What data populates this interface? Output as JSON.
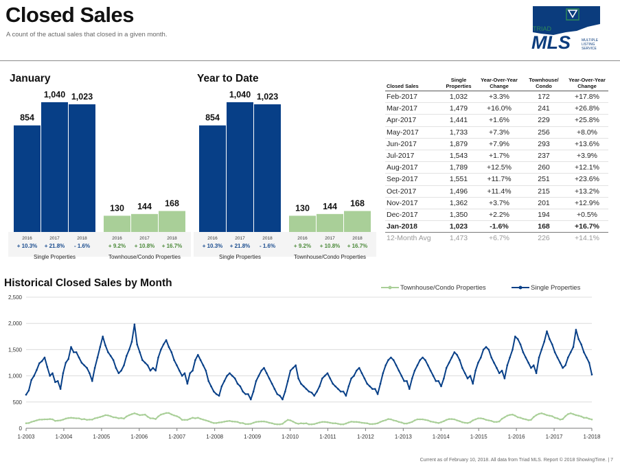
{
  "header": {
    "title": "Closed Sales",
    "subtitle": "A count of the actual sales that closed in a given month."
  },
  "logo": {
    "line1": "TRIAD",
    "line2": "MLS",
    "tag1": "MULTIPLE",
    "tag2": "LISTING",
    "tag3": "SERVICE",
    "colors": {
      "navy": "#0b3c7d",
      "green": "#2e8b57"
    }
  },
  "colors": {
    "single": "#073f87",
    "townhouse": "#a9cf98",
    "pct_single": "#1b4d8f",
    "pct_town": "#4c8a3a"
  },
  "january": {
    "title": "January"
  },
  "ytd": {
    "title": "Year to Date"
  },
  "chart_data": [
    {
      "type": "bar",
      "panel": "january",
      "title": "January",
      "groups": [
        {
          "name": "Single Properties",
          "categories": [
            "2016",
            "2017",
            "2018"
          ],
          "values": [
            854,
            1040,
            1023
          ],
          "changes": [
            "+ 10.3%",
            "+ 21.8%",
            "- 1.6%"
          ]
        },
        {
          "name": "Townhouse/Condo Properties",
          "categories": [
            "2016",
            "2017",
            "2018"
          ],
          "values": [
            130,
            144,
            168
          ],
          "changes": [
            "+ 9.2%",
            "+ 10.8%",
            "+ 16.7%"
          ]
        }
      ]
    },
    {
      "type": "bar",
      "panel": "ytd",
      "title": "Year to Date",
      "groups": [
        {
          "name": "Single Properties",
          "categories": [
            "2016",
            "2017",
            "2018"
          ],
          "values": [
            854,
            1040,
            1023
          ],
          "changes": [
            "+ 10.3%",
            "+ 21.8%",
            "- 1.6%"
          ]
        },
        {
          "name": "Townhouse/Condo Properties",
          "categories": [
            "2016",
            "2017",
            "2018"
          ],
          "values": [
            130,
            144,
            168
          ],
          "changes": [
            "+ 9.2%",
            "+ 10.8%",
            "+ 16.7%"
          ]
        }
      ]
    },
    {
      "type": "line",
      "panel": "historical",
      "title": "Historical Closed Sales by Month",
      "ylim": [
        0,
        2500
      ],
      "yticks": [
        "0",
        "500",
        "1,000",
        "1,500",
        "2,000",
        "2,500"
      ],
      "xticks": [
        "1-2003",
        "1-2004",
        "1-2005",
        "1-2006",
        "1-2007",
        "1-2008",
        "1-2009",
        "1-2010",
        "1-2011",
        "1-2012",
        "1-2013",
        "1-2014",
        "1-2015",
        "1-2016",
        "1-2017",
        "1-2018"
      ],
      "legend": "top-right",
      "series": [
        {
          "name": "Townhouse/Condo Properties",
          "values": [
            95,
            100,
            120,
            135,
            150,
            165,
            165,
            170,
            170,
            175,
            170,
            140,
            145,
            150,
            165,
            185,
            195,
            200,
            195,
            190,
            190,
            170,
            175,
            160,
            165,
            165,
            190,
            200,
            215,
            230,
            250,
            245,
            230,
            210,
            205,
            190,
            195,
            185,
            225,
            250,
            270,
            285,
            270,
            250,
            255,
            260,
            220,
            190,
            190,
            175,
            225,
            260,
            275,
            290,
            290,
            265,
            245,
            230,
            205,
            160,
            160,
            160,
            180,
            200,
            190,
            200,
            180,
            165,
            150,
            135,
            115,
            100,
            100,
            110,
            115,
            125,
            135,
            140,
            130,
            125,
            120,
            100,
            100,
            80,
            80,
            85,
            105,
            120,
            125,
            130,
            130,
            120,
            105,
            95,
            80,
            75,
            75,
            85,
            125,
            160,
            150,
            125,
            100,
            85,
            95,
            90,
            95,
            75,
            75,
            80,
            95,
            110,
            120,
            120,
            115,
            105,
            95,
            95,
            85,
            75,
            75,
            90,
            110,
            125,
            120,
            120,
            115,
            105,
            100,
            95,
            80,
            80,
            85,
            95,
            120,
            140,
            155,
            175,
            170,
            150,
            140,
            120,
            110,
            90,
            90,
            105,
            120,
            150,
            170,
            170,
            170,
            160,
            150,
            130,
            120,
            110,
            100,
            115,
            135,
            160,
            175,
            175,
            170,
            150,
            135,
            115,
            105,
            100,
            115,
            150,
            170,
            190,
            190,
            180,
            160,
            150,
            140,
            120,
            120,
            130,
            180,
            210,
            240,
            255,
            260,
            240,
            210,
            200,
            180,
            170,
            155,
            160,
            215,
            250,
            275,
            285,
            270,
            250,
            240,
            230,
            200,
            190,
            165,
            175,
            230,
            270,
            285,
            270,
            250,
            240,
            225,
            200,
            200,
            180,
            168
          ]
        },
        {
          "name": "Single Properties",
          "values": [
            640,
            720,
            920,
            1000,
            1110,
            1240,
            1280,
            1350,
            1170,
            1000,
            1050,
            880,
            900,
            750,
            1050,
            1250,
            1320,
            1550,
            1450,
            1450,
            1350,
            1250,
            1200,
            1150,
            1050,
            900,
            1150,
            1350,
            1550,
            1750,
            1580,
            1450,
            1380,
            1300,
            1150,
            1050,
            1100,
            1200,
            1380,
            1500,
            1650,
            1980,
            1600,
            1450,
            1300,
            1250,
            1200,
            1100,
            1150,
            1100,
            1350,
            1500,
            1600,
            1680,
            1550,
            1450,
            1300,
            1200,
            1100,
            1000,
            1050,
            850,
            1050,
            1100,
            1300,
            1400,
            1300,
            1200,
            1100,
            900,
            800,
            700,
            650,
            620,
            800,
            900,
            1000,
            1050,
            1000,
            950,
            850,
            800,
            700,
            650,
            650,
            550,
            700,
            900,
            1000,
            1100,
            1150,
            1050,
            950,
            850,
            750,
            650,
            620,
            550,
            700,
            900,
            1100,
            1150,
            1200,
            950,
            850,
            800,
            750,
            700,
            680,
            620,
            700,
            800,
            950,
            1000,
            1050,
            950,
            850,
            800,
            750,
            700,
            700,
            620,
            800,
            950,
            1000,
            1100,
            1150,
            1050,
            950,
            850,
            800,
            750,
            750,
            650,
            850,
            1050,
            1200,
            1300,
            1350,
            1300,
            1200,
            1100,
            1000,
            900,
            900,
            750,
            950,
            1100,
            1200,
            1300,
            1350,
            1300,
            1200,
            1100,
            1000,
            900,
            900,
            800,
            950,
            1150,
            1250,
            1350,
            1450,
            1400,
            1300,
            1150,
            1050,
            950,
            1000,
            850,
            1100,
            1250,
            1350,
            1500,
            1550,
            1500,
            1350,
            1250,
            1150,
            1050,
            1100,
            950,
            1200,
            1350,
            1500,
            1750,
            1700,
            1600,
            1450,
            1350,
            1250,
            1150,
            1200,
            1050,
            1350,
            1500,
            1650,
            1850,
            1700,
            1600,
            1450,
            1350,
            1250,
            1150,
            1200,
            1350,
            1450,
            1550,
            1880,
            1700,
            1600,
            1450,
            1350,
            1250,
            1023
          ]
        }
      ]
    }
  ],
  "historical": {
    "title": "Historical Closed Sales by Month"
  },
  "table": {
    "headers": [
      "Closed Sales",
      "Single Properties",
      "Year-Over-Year Change",
      "Townhouse/ Condo",
      "Year-Over-Year Change"
    ],
    "rows": [
      [
        "Feb-2017",
        "1,032",
        "+3.3%",
        "172",
        "+17.8%"
      ],
      [
        "Mar-2017",
        "1,479",
        "+16.0%",
        "241",
        "+26.8%"
      ],
      [
        "Apr-2017",
        "1,441",
        "+1.6%",
        "229",
        "+25.8%"
      ],
      [
        "May-2017",
        "1,733",
        "+7.3%",
        "256",
        "+8.0%"
      ],
      [
        "Jun-2017",
        "1,879",
        "+7.9%",
        "293",
        "+13.6%"
      ],
      [
        "Jul-2017",
        "1,543",
        "+1.7%",
        "237",
        "+3.9%"
      ],
      [
        "Aug-2017",
        "1,789",
        "+12.5%",
        "260",
        "+12.1%"
      ],
      [
        "Sep-2017",
        "1,551",
        "+11.7%",
        "251",
        "+23.6%"
      ],
      [
        "Oct-2017",
        "1,496",
        "+11.4%",
        "215",
        "+13.2%"
      ],
      [
        "Nov-2017",
        "1,362",
        "+3.7%",
        "201",
        "+12.9%"
      ],
      [
        "Dec-2017",
        "1,350",
        "+2.2%",
        "194",
        "+0.5%"
      ],
      [
        "Jan-2018",
        "1,023",
        "-1.6%",
        "168",
        "+16.7%"
      ]
    ],
    "avg": [
      "12-Month Avg",
      "1,473",
      "+6.7%",
      "226",
      "+14.1%"
    ]
  },
  "footer": {
    "text": "Current as of February 10, 2018. All data from Triad MLS. Report © 2018 ShowingTime.  |  7"
  }
}
